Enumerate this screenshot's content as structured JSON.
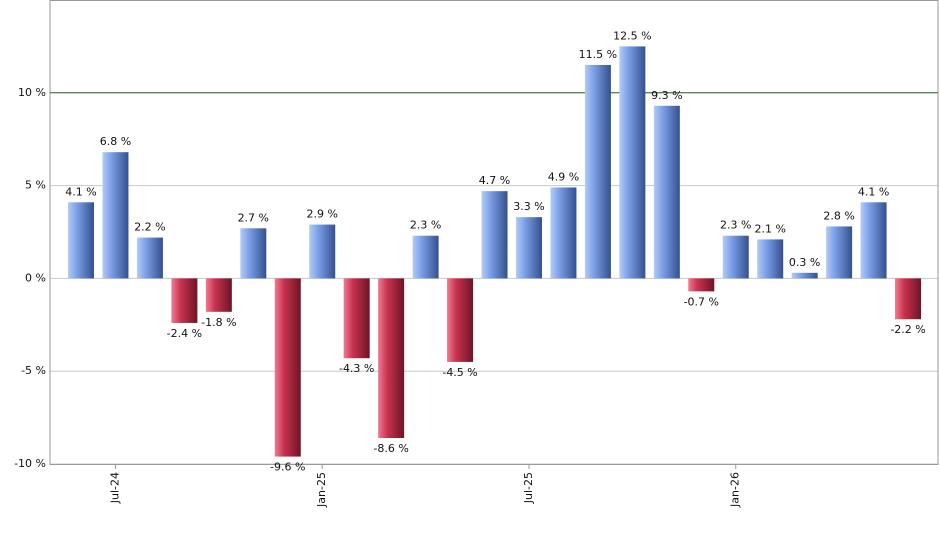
{
  "chart_data": {
    "type": "bar",
    "categories": [
      null,
      "Jul-24",
      null,
      null,
      null,
      null,
      null,
      "Jan-25",
      null,
      null,
      null,
      null,
      null,
      "Jul-25",
      null,
      null,
      null,
      null,
      null,
      "Jan-26",
      null,
      null,
      null,
      null,
      null
    ],
    "values": [
      4.1,
      6.8,
      2.2,
      -2.4,
      -1.8,
      2.7,
      -9.6,
      2.9,
      -4.3,
      -8.6,
      2.3,
      -4.5,
      4.7,
      3.3,
      4.9,
      11.5,
      12.5,
      9.3,
      -0.7,
      2.3,
      2.1,
      0.3,
      2.8,
      4.1,
      -2.2
    ],
    "value_labels": [
      "4.1 %",
      "6.8 %",
      "2.2 %",
      "-2.4 %",
      "-1.8 %",
      "2.7 %",
      "-9.6 %",
      "2.9 %",
      "-4.3 %",
      "-8.6 %",
      "2.3 %",
      "-4.5 %",
      "4.7 %",
      "3.3 %",
      "4.9 %",
      "11.5 %",
      "12.5 %",
      "9.3 %",
      "-0.7 %",
      "2.3 %",
      "2.1 %",
      "0.3 %",
      "2.8 %",
      "4.1 %",
      "-2.2 %"
    ],
    "positive_color": "#7a9ee6",
    "negative_color": "#c8334f",
    "ylim": [
      -10,
      15
    ],
    "yticks": [
      {
        "value": -10,
        "label": "-10 %"
      },
      {
        "value": -5,
        "label": "-5 %"
      },
      {
        "value": 0,
        "label": "0 %"
      },
      {
        "value": 5,
        "label": "5 %"
      },
      {
        "value": 10,
        "label": "10 %"
      }
    ],
    "reference_line": 10,
    "reference_color": "#2e6b2e",
    "grid": true
  }
}
